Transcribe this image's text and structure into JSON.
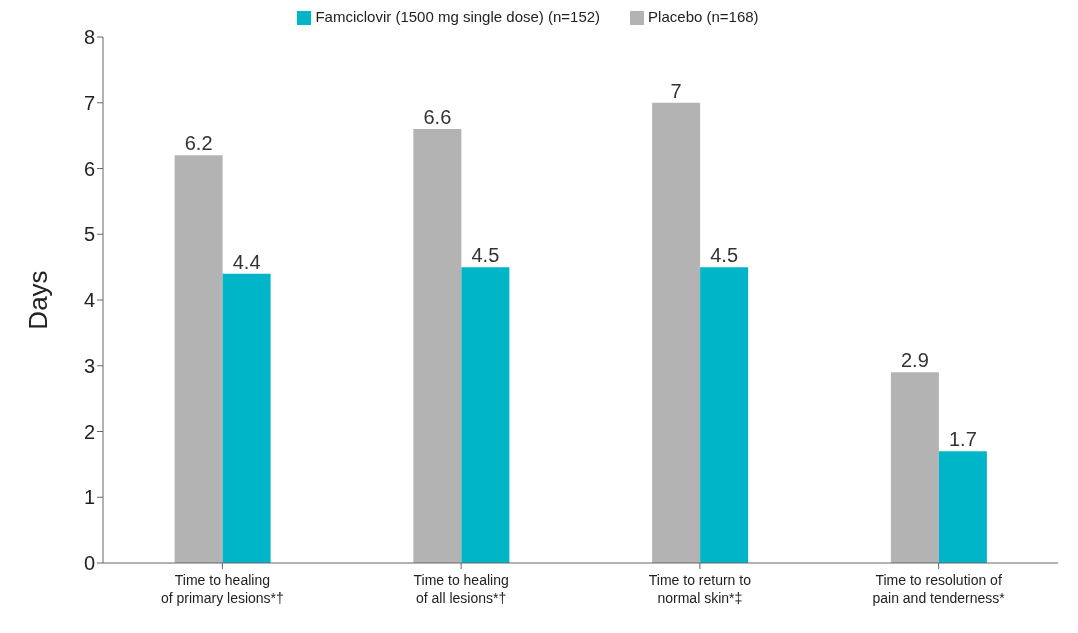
{
  "chart_data": {
    "type": "bar",
    "ylabel": "Days",
    "categories": [
      "Time to healing\nof primary lesions*†",
      "Time to healing\nof all lesions*†",
      "Time to return to\nnormal skin*‡",
      "Time to resolution of\npain and tenderness*"
    ],
    "series": [
      {
        "name": "Placebo (n=168)",
        "color": "#b3b3b3",
        "values": [
          6.2,
          6.6,
          7,
          2.9
        ]
      },
      {
        "name": "Famciclovir (1500 mg single dose) (n=152)",
        "color": "#00b5c8",
        "values": [
          4.4,
          4.5,
          4.5,
          1.7
        ]
      }
    ],
    "ylim": [
      0,
      8
    ],
    "yticks": [
      0,
      1,
      2,
      3,
      4,
      5,
      6,
      7,
      8
    ],
    "grid": false,
    "legend": "top",
    "data_labels": true
  }
}
